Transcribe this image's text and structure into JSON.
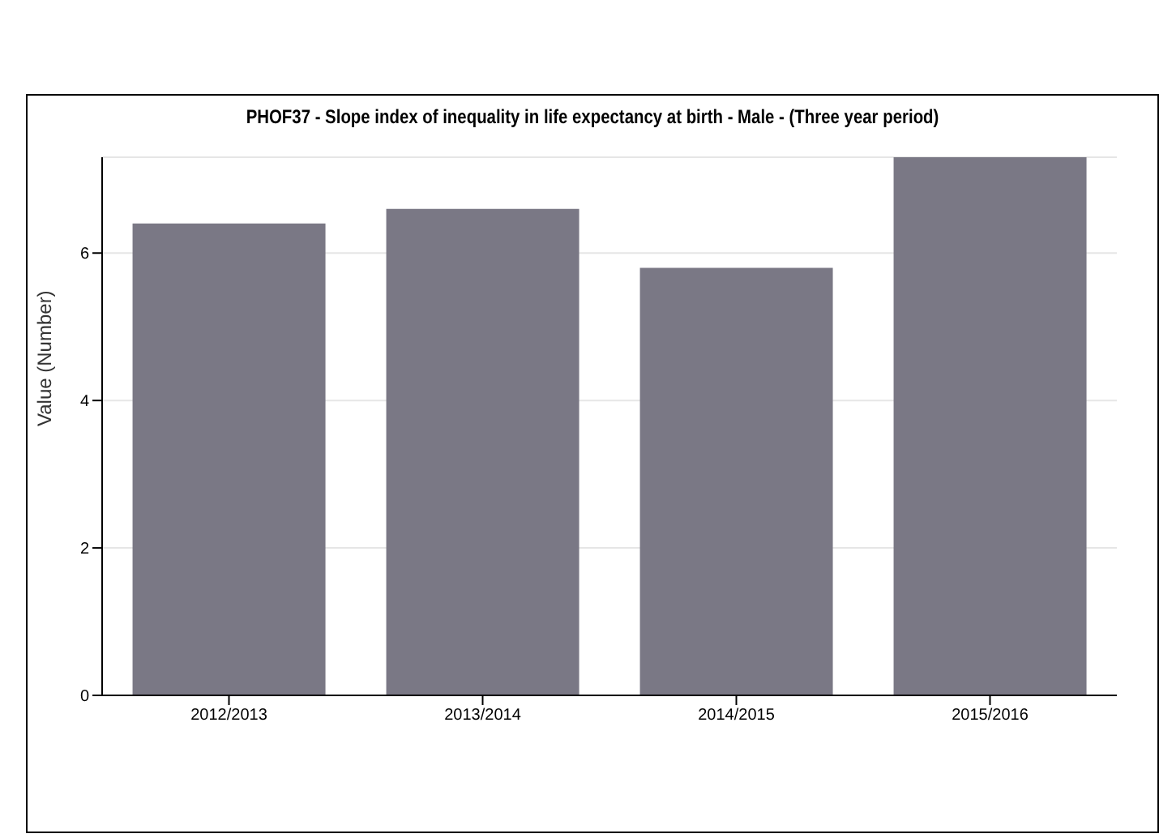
{
  "chart_data": {
    "type": "bar",
    "title": "PHOF37 - Slope index of inequality in life expectancy at birth - Male - (Three year period)",
    "ylabel": "Value (Number)",
    "categories": [
      "2012/2013",
      "2013/2014",
      "2014/2015",
      "2015/2016"
    ],
    "values": [
      6.4,
      6.6,
      5.8,
      7.3
    ],
    "color": "#7a7885",
    "ylim": [
      0,
      7.3
    ],
    "yticks": [
      0,
      2,
      4,
      6
    ],
    "grid": "y"
  }
}
